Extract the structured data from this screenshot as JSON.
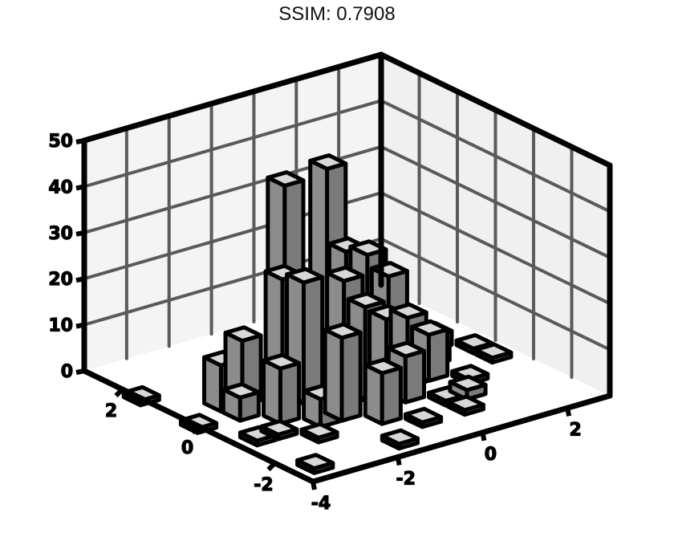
{
  "title": "SSIM: 0.7908",
  "chart_data": {
    "type": "bar3d",
    "title": "SSIM: 0.7908",
    "xlabel": "",
    "ylabel": "",
    "zlabel": "",
    "x_ticks": [
      "-4",
      "-2",
      "0",
      "2"
    ],
    "y_ticks": [
      "-2",
      "0",
      "2"
    ],
    "z_ticks": [
      "0",
      "10",
      "20",
      "30",
      "40",
      "50"
    ],
    "xlim": [
      -4,
      3
    ],
    "ylim": [
      -3,
      3
    ],
    "zlim": [
      0,
      50
    ],
    "grid": true,
    "bar_color": "#7a7a7a",
    "bars": [
      {
        "x": -1.5,
        "y": 0.5,
        "z": 45
      },
      {
        "x": -0.5,
        "y": 0.5,
        "z": 46
      },
      {
        "x": -2.0,
        "y": 0.0,
        "z": 28
      },
      {
        "x": -1.5,
        "y": 0.0,
        "z": 26
      },
      {
        "x": -0.5,
        "y": 0.0,
        "z": 30
      },
      {
        "x": 0.0,
        "y": 0.0,
        "z": 28
      },
      {
        "x": 0.5,
        "y": 0.0,
        "z": 22
      },
      {
        "x": -1.0,
        "y": -0.5,
        "z": 27
      },
      {
        "x": -0.5,
        "y": -0.5,
        "z": 20
      },
      {
        "x": -3.0,
        "y": 0.5,
        "z": 10
      },
      {
        "x": -2.5,
        "y": 0.5,
        "z": 14
      },
      {
        "x": -1.5,
        "y": -1.0,
        "z": 18
      },
      {
        "x": 0.0,
        "y": -0.5,
        "z": 16
      },
      {
        "x": 0.5,
        "y": -0.5,
        "z": 15
      },
      {
        "x": -2.5,
        "y": -0.5,
        "z": 12
      },
      {
        "x": -1.0,
        "y": -1.5,
        "z": 11
      },
      {
        "x": 0.0,
        "y": -1.0,
        "z": 10
      },
      {
        "x": 1.0,
        "y": -0.5,
        "z": 10
      },
      {
        "x": -2.0,
        "y": -1.0,
        "z": 6
      },
      {
        "x": -3.0,
        "y": 0.0,
        "z": 5
      },
      {
        "x": 1.5,
        "y": 0.0,
        "z": 4
      },
      {
        "x": 2.0,
        "y": 0.5,
        "z": 3
      },
      {
        "x": 1.0,
        "y": -1.5,
        "z": 2
      },
      {
        "x": -0.5,
        "y": -2.0,
        "z": 1
      },
      {
        "x": 0.5,
        "y": -2.0,
        "z": 1
      },
      {
        "x": -2.5,
        "y": -1.5,
        "z": 1
      },
      {
        "x": -3.5,
        "y": -1.0,
        "z": 1
      },
      {
        "x": -4.0,
        "y": 1.5,
        "z": 1
      },
      {
        "x": -4.0,
        "y": 0.0,
        "z": 1
      },
      {
        "x": -3.0,
        "y": -1.0,
        "z": 1
      },
      {
        "x": -1.5,
        "y": -2.5,
        "z": 1
      },
      {
        "x": 0.5,
        "y": -1.5,
        "z": 1
      },
      {
        "x": 1.5,
        "y": -1.0,
        "z": 1
      },
      {
        "x": 2.5,
        "y": 0.0,
        "z": 1
      },
      {
        "x": 2.0,
        "y": 1.0,
        "z": 1
      },
      {
        "x": 1.0,
        "y": 1.5,
        "z": 1
      },
      {
        "x": 2.5,
        "y": -0.5,
        "z": 1
      },
      {
        "x": -3.5,
        "y": -2.5,
        "z": 1
      }
    ]
  }
}
